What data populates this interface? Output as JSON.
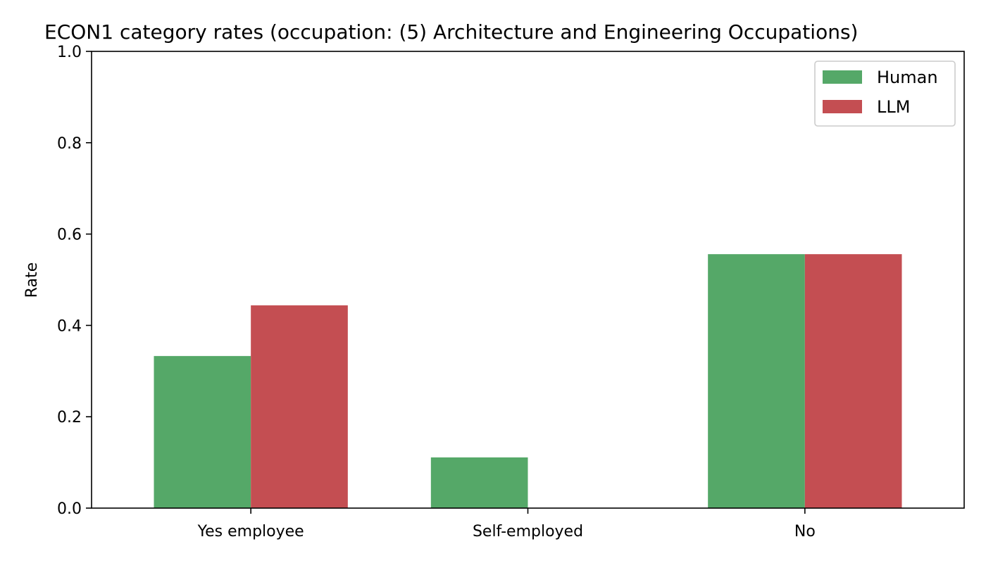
{
  "chart_data": {
    "type": "bar",
    "title": "ECON1 category rates (occupation: (5) Architecture and Engineering Occupations)",
    "xlabel": "",
    "ylabel": "Rate",
    "ylim": [
      0,
      1.0
    ],
    "yticks": [
      "0.0",
      "0.2",
      "0.4",
      "0.6",
      "0.8",
      "1.0"
    ],
    "categories": [
      "Yes employee",
      "Self-employed",
      "No"
    ],
    "series": [
      {
        "name": "Human",
        "color": "#55a868",
        "values": [
          0.333,
          0.111,
          0.556
        ]
      },
      {
        "name": "LLM",
        "color": "#c44e52",
        "values": [
          0.444,
          0.0,
          0.556
        ]
      }
    ],
    "legend_position": "top-right",
    "grid": false
  }
}
